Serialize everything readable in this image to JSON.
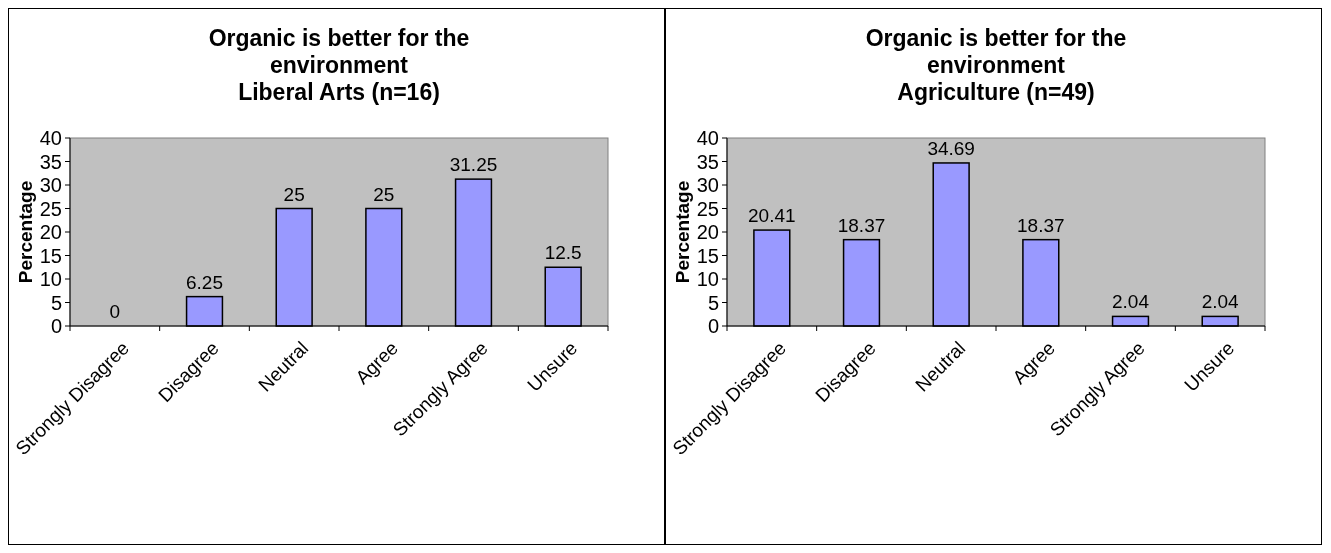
{
  "chart_data": [
    {
      "type": "bar",
      "title": "Organic is better for the environment",
      "subtitle": "Liberal Arts (n=16)",
      "ylabel": "Percentage",
      "categories": [
        "Strongly Disagree",
        "Disagree",
        "Neutral",
        "Agree",
        "Strongly Agree",
        "Unsure"
      ],
      "values": [
        0,
        6.25,
        25,
        25,
        31.25,
        12.5
      ],
      "color": "#9999ff",
      "ylim": [
        0,
        40
      ],
      "yticks": [
        0,
        5,
        10,
        15,
        20,
        25,
        30,
        35,
        40
      ],
      "data_labels": true,
      "grid": false
    },
    {
      "type": "bar",
      "title": "Organic is better for the environment",
      "subtitle": "Agriculture (n=49)",
      "ylabel": "Percentage",
      "categories": [
        "Strongly Disagree",
        "Disagree",
        "Neutral",
        "Agree",
        "Strongly Agree",
        "Unsure"
      ],
      "values": [
        20.41,
        18.37,
        34.69,
        18.37,
        2.04,
        2.04
      ],
      "color": "#9999ff",
      "ylim": [
        0,
        40
      ],
      "yticks": [
        0,
        5,
        10,
        15,
        20,
        25,
        30,
        35,
        40
      ],
      "data_labels": true,
      "grid": false
    }
  ]
}
